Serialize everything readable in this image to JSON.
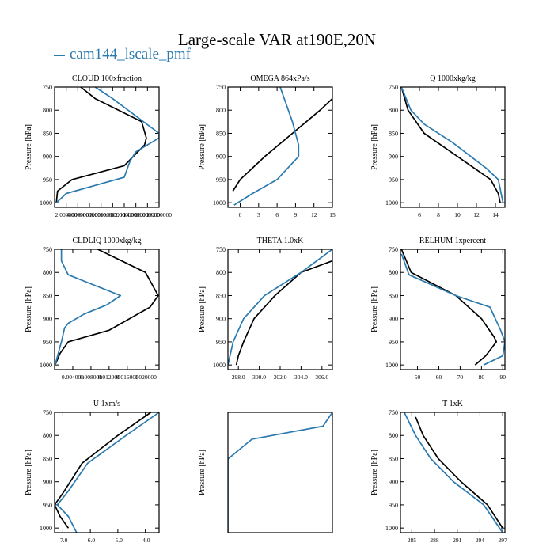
{
  "figure": {
    "title": "Large-scale VAR at190E,20N",
    "legend": [
      {
        "label": "cam144_lscale_pmf",
        "color": "#2a7ab0"
      }
    ]
  },
  "chart_data": [
    {
      "type": "line",
      "title": "CLOUD  100xfraction",
      "ylabel": "Pressure [hPa]",
      "ylim": [
        750,
        1010
      ],
      "xlim": [
        0.0,
        0.18
      ],
      "yticks": [
        750,
        800,
        850,
        900,
        950,
        1000
      ],
      "xticks": [
        0.02,
        0.04,
        0.06,
        0.08,
        0.1,
        0.12,
        0.14,
        0.16,
        0.18
      ],
      "xticklabels": [
        "2.000000",
        "4.000000",
        "6.000000",
        "8.000000",
        "10.000000",
        "12.000000",
        "14.000000",
        "16.000000",
        "18.000000"
      ],
      "series": [
        {
          "color": "#000000",
          "x": [
            0.045,
            0.07,
            0.15,
            0.158,
            0.155,
            0.12,
            0.03,
            0.005,
            0.003
          ],
          "y": [
            750,
            775,
            825,
            860,
            875,
            920,
            950,
            975,
            1000
          ]
        },
        {
          "color": "#2a7ab0",
          "x": [
            0.07,
            0.1,
            0.18,
            0.18,
            0.14,
            0.13,
            0.12,
            0.02,
            0.003
          ],
          "y": [
            750,
            775,
            850,
            860,
            890,
            910,
            945,
            980,
            1000
          ]
        }
      ]
    },
    {
      "type": "line",
      "title": "OMEGA  864xPa/s",
      "ylabel": "Pressure [hPa]",
      "ylim": [
        750,
        1010
      ],
      "xlim": [
        -2,
        15
      ],
      "yticks": [
        750,
        800,
        850,
        900,
        950,
        1000
      ],
      "xticks": [
        0,
        3,
        6,
        9,
        12,
        15
      ],
      "xticklabels": [
        "0",
        "3",
        "6",
        "9",
        "12",
        "15"
      ],
      "series": [
        {
          "color": "#000000",
          "x": [
            15,
            13,
            8.5,
            4,
            0,
            -1.2
          ],
          "y": [
            775,
            800,
            850,
            900,
            950,
            975
          ]
        },
        {
          "color": "#2a7ab0",
          "x": [
            6.5,
            8.5,
            9.5,
            9.5,
            6,
            2,
            -1
          ],
          "y": [
            750,
            825,
            875,
            900,
            950,
            980,
            1005
          ]
        }
      ]
    },
    {
      "type": "line",
      "title": "Q  1000xkg/kg",
      "ylabel": "Pressure [hPa]",
      "ylim": [
        750,
        1010
      ],
      "xlim": [
        4,
        15
      ],
      "yticks": [
        750,
        800,
        850,
        900,
        950,
        1000
      ],
      "xticks": [
        6,
        8,
        10,
        12,
        14
      ],
      "xticklabels": [
        "6",
        "8",
        "10",
        "12",
        "14"
      ],
      "series": [
        {
          "color": "#000000",
          "x": [
            4.1,
            4.8,
            6.5,
            10,
            13.5,
            14.3,
            14.5
          ],
          "y": [
            750,
            800,
            850,
            900,
            950,
            980,
            1000
          ]
        },
        {
          "color": "#2a7ab0",
          "x": [
            4.1,
            5.1,
            6.5,
            9.5,
            13.0,
            14.3,
            14.8
          ],
          "y": [
            750,
            800,
            830,
            870,
            925,
            950,
            1000
          ]
        }
      ]
    },
    {
      "type": "line",
      "title": "CLDLIQ  1000xkg/kg",
      "ylabel": "Pressure [hPa]",
      "ylim": [
        750,
        1010
      ],
      "xlim": [
        0.0,
        0.023
      ],
      "yticks": [
        750,
        800,
        850,
        900,
        950,
        1000
      ],
      "xticks": [
        0.004,
        0.008,
        0.012,
        0.016,
        0.02
      ],
      "xticklabels": [
        "0.004000",
        "0.008000",
        "0.012000",
        "0.016000",
        "0.020000"
      ],
      "series": [
        {
          "color": "#000000",
          "x": [
            0.0095,
            0.02,
            0.0228,
            0.021,
            0.012,
            0.003,
            0.0012,
            0.0001
          ],
          "y": [
            750,
            800,
            850,
            875,
            925,
            950,
            975,
            1000
          ]
        },
        {
          "color": "#2a7ab0",
          "x": [
            0.0015,
            0.0015,
            0.003,
            0.0145,
            0.0115,
            0.0065,
            0.003,
            0.0022,
            0.0015,
            0.0001
          ],
          "y": [
            750,
            775,
            805,
            850,
            870,
            890,
            910,
            920,
            950,
            1000
          ]
        }
      ]
    },
    {
      "type": "line",
      "title": "THETA  1.0xK",
      "ylabel": "Pressure [hPa]",
      "ylim": [
        750,
        1010
      ],
      "xlim": [
        297.0,
        307.0
      ],
      "yticks": [
        750,
        800,
        850,
        900,
        950,
        1000
      ],
      "xticks": [
        298.0,
        300.0,
        302.0,
        304.0,
        306.0
      ],
      "xticklabels": [
        "298.0",
        "300.0",
        "302.0",
        "304.0",
        "306.0"
      ],
      "series": [
        {
          "color": "#000000",
          "x": [
            307.0,
            304.0,
            301.5,
            299.5,
            298.5,
            298.0,
            297.8
          ],
          "y": [
            775,
            800,
            850,
            900,
            950,
            980,
            1000
          ]
        },
        {
          "color": "#2a7ab0",
          "x": [
            307.0,
            304.0,
            300.5,
            298.5,
            297.5,
            297.2,
            297.0
          ],
          "y": [
            750,
            800,
            850,
            900,
            950,
            980,
            1000
          ]
        }
      ]
    },
    {
      "type": "line",
      "title": "RELHUM  1xpercent",
      "ylabel": "Pressure [hPa]",
      "ylim": [
        750,
        1010
      ],
      "xlim": [
        42,
        91
      ],
      "yticks": [
        750,
        800,
        850,
        900,
        950,
        1000
      ],
      "xticks": [
        50,
        60,
        70,
        80,
        90
      ],
      "xticklabels": [
        "50",
        "60",
        "70",
        "80",
        "90"
      ],
      "series": [
        {
          "color": "#000000",
          "x": [
            42.5,
            47,
            68,
            80,
            86,
            87,
            82,
            77
          ],
          "y": [
            750,
            800,
            850,
            900,
            940,
            950,
            980,
            1000
          ]
        },
        {
          "color": "#2a7ab0",
          "x": [
            42.5,
            46,
            68,
            84,
            89,
            91,
            90,
            81
          ],
          "y": [
            760,
            805,
            850,
            875,
            925,
            950,
            980,
            1000
          ]
        }
      ]
    },
    {
      "type": "line",
      "title": "U  1xm/s",
      "ylabel": "Pressure [hPa]",
      "ylim": [
        750,
        1010
      ],
      "xlim": [
        -7.3,
        -3.5
      ],
      "yticks": [
        750,
        800,
        850,
        900,
        950,
        1000
      ],
      "xticks": [
        -7.0,
        -6.0,
        -5.0,
        -4.0
      ],
      "xticklabels": [
        "-7.0",
        "-6.0",
        "-5.0",
        "-4.0"
      ],
      "series": [
        {
          "color": "#000000",
          "x": [
            -3.8,
            -5.0,
            -6.3,
            -7.0,
            -7.3,
            -7.1,
            -6.8
          ],
          "y": [
            750,
            800,
            860,
            925,
            950,
            975,
            1000
          ]
        },
        {
          "color": "#2a7ab0",
          "x": [
            -3.5,
            -4.7,
            -6.1,
            -6.8,
            -7.2,
            -6.8,
            -6.5
          ],
          "y": [
            750,
            800,
            860,
            920,
            950,
            975,
            1010
          ]
        }
      ]
    },
    {
      "type": "line",
      "title": "",
      "ylabel": "Pressure [hPa]",
      "ylim": [
        750,
        1010
      ],
      "xlim": [
        0,
        1
      ],
      "yticks": [],
      "xticks": [],
      "xticklabels": [],
      "series": [
        {
          "color": "#2a7ab0",
          "x": [
            1.0,
            0.91,
            0.23,
            0.0,
            0.0
          ],
          "y": [
            750,
            780,
            808,
            851,
            1010
          ]
        }
      ]
    },
    {
      "type": "line",
      "title": "T  1xK",
      "ylabel": "Pressure [hPa]",
      "ylim": [
        750,
        1010
      ],
      "xlim": [
        283.5,
        297.3
      ],
      "yticks": [
        750,
        800,
        850,
        900,
        950,
        1000
      ],
      "xticks": [
        285,
        288,
        291,
        294,
        297
      ],
      "xticklabels": [
        "285",
        "288",
        "291",
        "294",
        "297"
      ],
      "series": [
        {
          "color": "#000000",
          "x": [
            285.5,
            286.5,
            288.5,
            291.5,
            295.0,
            297.0
          ],
          "y": [
            760,
            800,
            850,
            900,
            950,
            1000
          ]
        },
        {
          "color": "#2a7ab0",
          "x": [
            284.0,
            285.5,
            287.5,
            290.5,
            294.5,
            297.0
          ],
          "y": [
            750,
            800,
            850,
            900,
            950,
            1010
          ]
        }
      ]
    }
  ]
}
